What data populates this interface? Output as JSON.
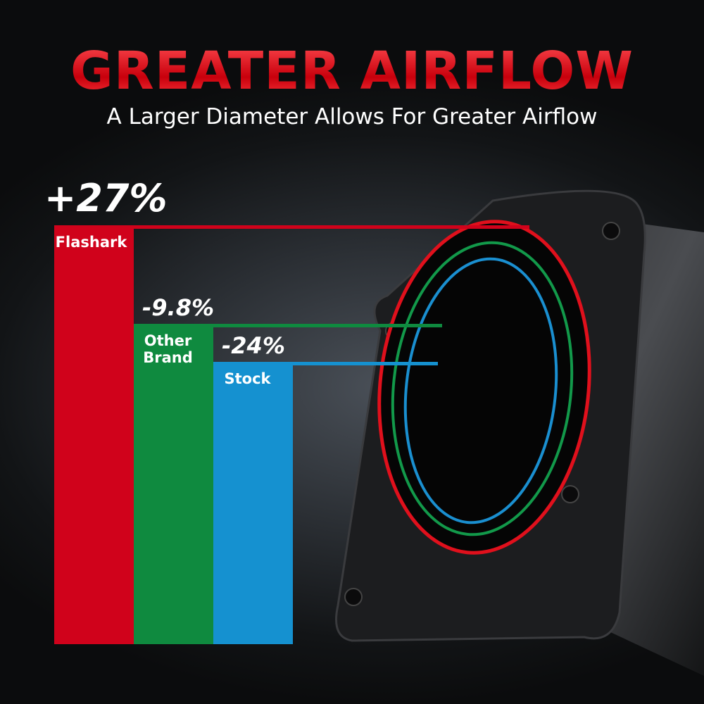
{
  "header": {
    "title": "GREATER AIRFLOW",
    "subtitle": "A Larger Diameter Allows For Greater Airflow"
  },
  "chart_data": {
    "type": "bar",
    "title": "",
    "categories": [
      "Flashark",
      "Other Brand",
      "Stock"
    ],
    "values": [
      27,
      -9.8,
      -24
    ],
    "value_labels": [
      "+27%",
      "-9.8%",
      "-24%"
    ],
    "colors": [
      "#d0021b",
      "#0f8a3f",
      "#1591d0"
    ],
    "grid": false,
    "legend": "none"
  }
}
